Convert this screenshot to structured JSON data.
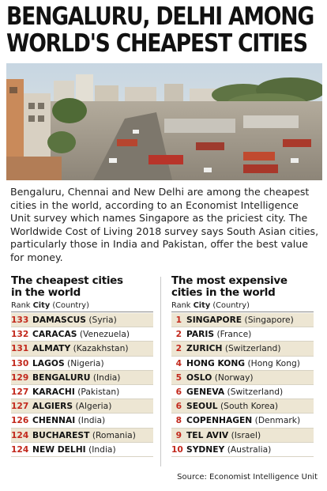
{
  "headline": {
    "line1": "BENGALURU, DELHI AMONG",
    "line2": "WORLD'S CHEAPEST CITIES"
  },
  "intro": "Bengaluru, Chennai and New Delhi are among the cheapest cities in the world, according to an Economist Intelligence Unit survey which names Singapore as the priciest city. The Worldwide Cost of Living 2018 survey says South Asian cities, particularly those in India and Pakistan, offer the best value for money.",
  "cheapest": {
    "title_line1": "The cheapest cities",
    "title_line2": "in the world",
    "header_rank": "Rank",
    "header_city": "City",
    "header_country": "(Country)",
    "rows": [
      {
        "rank": "133",
        "city": "DAMASCUS",
        "country": "(Syria)"
      },
      {
        "rank": "132",
        "city": "CARACAS",
        "country": "(Venezuela)"
      },
      {
        "rank": "131",
        "city": "ALMATY",
        "country": "(Kazakhstan)"
      },
      {
        "rank": "130",
        "city": "LAGOS",
        "country": "(Nigeria)"
      },
      {
        "rank": "129",
        "city": "BENGALURU",
        "country": "(India)"
      },
      {
        "rank": "127",
        "city": "KARACHI",
        "country": "(Pakistan)"
      },
      {
        "rank": "127",
        "city": "ALGIERS",
        "country": "(Algeria)"
      },
      {
        "rank": "126",
        "city": "CHENNAI",
        "country": "(India)"
      },
      {
        "rank": "124",
        "city": "BUCHAREST",
        "country": "(Romania)"
      },
      {
        "rank": "124",
        "city": "NEW DELHI",
        "country": "(India)"
      }
    ]
  },
  "expensive": {
    "title_line1": "The most expensive",
    "title_line2": "cities in the world",
    "header_rank": "Rank",
    "header_city": "City",
    "header_country": "(Country)",
    "rows": [
      {
        "rank": "1",
        "city": "SINGAPORE",
        "country": "(Singapore)"
      },
      {
        "rank": "2",
        "city": "PARIS",
        "country": "(France)"
      },
      {
        "rank": "2",
        "city": "ZURICH",
        "country": "(Switzerland)"
      },
      {
        "rank": "4",
        "city": "HONG KONG",
        "country": "(Hong Kong)"
      },
      {
        "rank": "5",
        "city": "OSLO",
        "country": "(Norway)"
      },
      {
        "rank": "6",
        "city": "GENEVA",
        "country": "(Switzerland)"
      },
      {
        "rank": "6",
        "city": "SEOUL",
        "country": "(South Korea)"
      },
      {
        "rank": "8",
        "city": "COPENHAGEN",
        "country": "(Denmark)"
      },
      {
        "rank": "9",
        "city": "TEL AVIV",
        "country": "(Israel)"
      },
      {
        "rank": "10",
        "city": "SYDNEY",
        "country": "(Australia)"
      }
    ]
  },
  "source": "Source: Economist Intelligence Unit",
  "colors": {
    "rank": "#c2281c",
    "row_shade": "#ede6d3"
  }
}
